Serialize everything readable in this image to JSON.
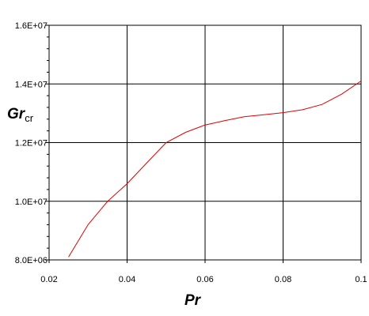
{
  "chart_data": {
    "type": "line",
    "x_ticks": [
      "0.02",
      "0.04",
      "0.06",
      "0.08",
      "0.1"
    ],
    "y_ticks": [
      "8.0E+06",
      "1.0E+07",
      "1.2E+07",
      "1.4E+07",
      "1.6E+07"
    ],
    "xlim": [
      0.02,
      0.1
    ],
    "ylim": [
      8000000,
      16000000
    ],
    "xlabel": "Pr",
    "ylabel_main": "Gr",
    "ylabel_sub": "cr",
    "grid": true,
    "colors": {
      "series": "#e00000",
      "grid": "#000000",
      "background": "#ffffff"
    },
    "series": [
      {
        "x": [
          0.025,
          0.03,
          0.035,
          0.04,
          0.045,
          0.05,
          0.055,
          0.06,
          0.065,
          0.07,
          0.075,
          0.08,
          0.085,
          0.09,
          0.095,
          0.1
        ],
        "y": [
          8100000,
          9200000,
          10000000,
          10600000,
          11300000,
          12000000,
          12350000,
          12600000,
          12750000,
          12880000,
          12950000,
          13020000,
          13120000,
          13300000,
          13650000,
          14100000
        ]
      }
    ]
  }
}
